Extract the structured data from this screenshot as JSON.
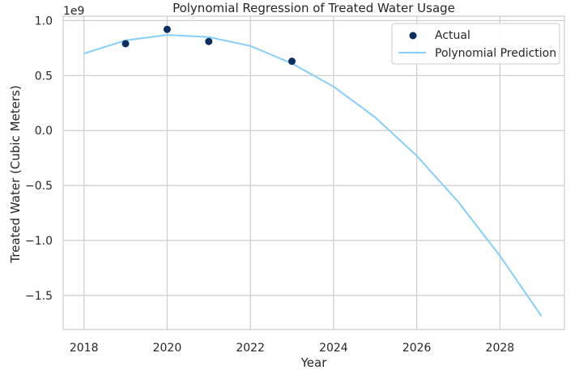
{
  "chart_data": {
    "type": "line",
    "title": "Polynomial Regression of Treated Water Usage",
    "xlabel": "Year",
    "ylabel": "Treated Water (Cubic Meters)",
    "y_offset_label": "1e9",
    "y_scale": 1000000000,
    "xlim": [
      2017.5,
      2029.55
    ],
    "ylim": [
      -1.81,
      1.04
    ],
    "x_ticks": [
      2018,
      2020,
      2022,
      2024,
      2026,
      2028
    ],
    "y_ticks": [
      1.0,
      0.5,
      0.0,
      -0.5,
      -1.0,
      -1.5
    ],
    "y_tick_labels": [
      "1.0",
      "0.5",
      "0.0",
      "−0.5",
      "−1.0",
      "−1.5"
    ],
    "grid": true,
    "legend_position": "top-right",
    "series": [
      {
        "name": "Actual",
        "kind": "scatter",
        "color": "#0b2f5e",
        "x": [
          2019,
          2020,
          2021,
          2023
        ],
        "y": [
          0.79,
          0.92,
          0.81,
          0.63
        ]
      },
      {
        "name": "Polynomial Prediction",
        "kind": "line",
        "color": "#87cefa",
        "x": [
          2018,
          2019,
          2020,
          2021,
          2022,
          2023,
          2024,
          2025,
          2026,
          2027,
          2028,
          2029
        ],
        "y": [
          0.7,
          0.82,
          0.87,
          0.85,
          0.77,
          0.61,
          0.4,
          0.12,
          -0.23,
          -0.65,
          -1.14,
          -1.69
        ]
      }
    ]
  }
}
